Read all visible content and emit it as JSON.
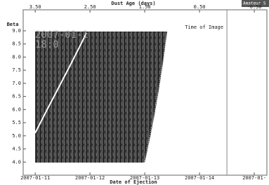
{
  "chart_data": {
    "type": "image",
    "x2label": "Dust Age (days)",
    "x2lim": [
      3.72,
      -0.73
    ],
    "x2ticks": [
      {
        "value": 3.5,
        "label": "3.50"
      },
      {
        "value": 2.5,
        "label": "2.50"
      },
      {
        "value": 1.5,
        "label": "1.50"
      },
      {
        "value": 0.5,
        "label": "0.50"
      },
      {
        "value": -0.5,
        "label": "-0.50"
      }
    ],
    "xlabel": "Date of Ejection",
    "xticks": [
      "2007-01-11",
      "2007-01-12",
      "2007-01-13",
      "2007-01-14",
      "2007-01-"
    ],
    "ylabel": "Beta",
    "ylim": [
      3.5,
      9.8
    ],
    "yticks": [
      {
        "value": 4,
        "label": "4.0"
      },
      {
        "value": 4.5,
        "label": "4.5"
      },
      {
        "value": 5,
        "label": "5.0"
      },
      {
        "value": 5.5,
        "label": "5.5"
      },
      {
        "value": 6,
        "label": "6.0"
      },
      {
        "value": 6.5,
        "label": "6.5"
      },
      {
        "value": 7,
        "label": "7.0"
      },
      {
        "value": 7.5,
        "label": "7.5"
      },
      {
        "value": 8,
        "label": "8.0"
      },
      {
        "value": 8.5,
        "label": "8.5"
      },
      {
        "value": 9,
        "label": "9.0"
      }
    ],
    "annotation": "Time of Image",
    "time_of_image": 0,
    "overlay_texts": [
      "2007-01-1",
      "18:0"
    ],
    "corner_label": "Amateur S"
  }
}
